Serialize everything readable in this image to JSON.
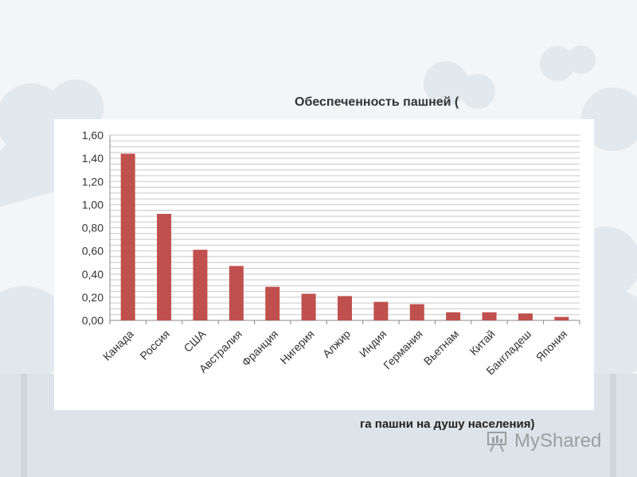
{
  "slide": {
    "title": "Обеспеченность пашней (",
    "subtitle": "га пашни на душу населения)",
    "watermark_text": "MyShared"
  },
  "colors": {
    "bar": "#c0504d",
    "grid": "#c8c8c8",
    "axis": "#888888",
    "background": "#f3f5f7"
  },
  "chart_data": {
    "type": "bar",
    "categories": [
      "Канада",
      "Россия",
      "США",
      "Австралия",
      "Франция",
      "Нигерия",
      "Алжир",
      "Индия",
      "Германия",
      "Вьетнам",
      "Китай",
      "Бангладеш",
      "Япония"
    ],
    "values": [
      1.44,
      0.92,
      0.61,
      0.47,
      0.29,
      0.23,
      0.21,
      0.16,
      0.14,
      0.07,
      0.07,
      0.06,
      0.03
    ],
    "y_ticks": [
      "0,00",
      "0,20",
      "0,40",
      "0,60",
      "0,80",
      "1,00",
      "1,20",
      "1,40",
      "1,60"
    ],
    "ylim": [
      0,
      1.6
    ],
    "grid": true,
    "title": "",
    "xlabel": "",
    "ylabel": ""
  }
}
